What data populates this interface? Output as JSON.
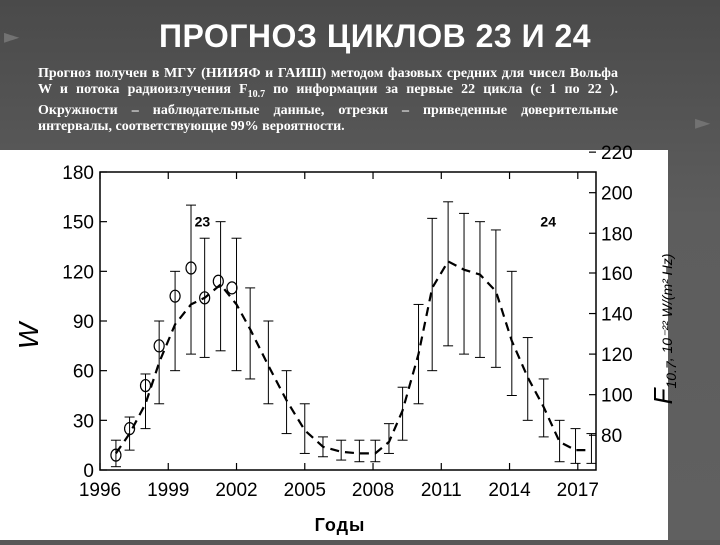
{
  "slide": {
    "title": "ПРОГНОЗ ЦИКЛОВ 23 И 24",
    "note_part1": "Прогноз получен в МГУ (НИИЯФ и ГАИШ) методом фазовых средних для чисел Вольфа W и потока радиоизлучения F",
    "note_sub": "10.7",
    "note_part2": " по информации за первые 22 цикла (с 1 по 22 ). Окружности – наблюдательные данные, отрезки – приведенные доверительные интервалы, соответствующие 99% вероятности.",
    "colors": {
      "background": "#585858",
      "text": "#ffffff",
      "panel": "#ffffff",
      "ink": "#000000"
    },
    "decoration": [
      "chevron-right-icon",
      "chevron-right-icon"
    ]
  },
  "chart_data": {
    "type": "line",
    "title": "",
    "xlabel": "Годы",
    "ylabel": "W",
    "y2label_main": "F",
    "y2label_sub": "10.7",
    "y2label_unit": ", 10⁻²² W/(m² Hz)",
    "xlim": [
      1996,
      2017.8
    ],
    "ylim": [
      0,
      180
    ],
    "x_ticks": [
      1996,
      1999,
      2002,
      2005,
      2008,
      2011,
      2014,
      2017
    ],
    "y_ticks": [
      0,
      30,
      60,
      90,
      120,
      150,
      180
    ],
    "y2_ticks": [
      {
        "label": "80",
        "y": 21
      },
      {
        "label": "100",
        "y": 45.5
      },
      {
        "label": "120",
        "y": 70
      },
      {
        "label": "140",
        "y": 94.5
      },
      {
        "label": "160",
        "y": 119
      },
      {
        "label": "180",
        "y": 143
      },
      {
        "label": "200",
        "y": 167.5
      },
      {
        "label": "220",
        "y": 192
      }
    ],
    "cycle_labels": [
      {
        "text": "23",
        "x": 2000.5,
        "y": 147
      },
      {
        "text": "24",
        "x": 2015.7,
        "y": 147
      }
    ],
    "grid": false,
    "series": [
      {
        "style": "dashed",
        "x": [
          1996.7,
          1997.3,
          1998.0,
          1998.6,
          1999.3,
          2000.0,
          2000.6,
          2001.3,
          2002.0,
          2002.6,
          2003.4,
          2004.2,
          2005.0,
          2005.8,
          2006.6,
          2007.4,
          2008.1,
          2008.7,
          2009.3,
          2010.0,
          2010.6,
          2011.3,
          2012.0,
          2012.7,
          2013.4,
          2014.1,
          2014.8,
          2015.5,
          2016.2,
          2016.9,
          2017.6
        ],
        "y": [
          10,
          22,
          40,
          65,
          88,
          100,
          104,
          112,
          100,
          85,
          63,
          42,
          24,
          14,
          11,
          10,
          10,
          17,
          36,
          70,
          110,
          126,
          121,
          118,
          108,
          78,
          56,
          38,
          17,
          12,
          12
        ]
      }
    ],
    "observations": [
      {
        "x": 1996.7,
        "y": 9
      },
      {
        "x": 1997.3,
        "y": 25
      },
      {
        "x": 1998.0,
        "y": 51
      },
      {
        "x": 1998.6,
        "y": 75
      },
      {
        "x": 1999.3,
        "y": 105
      },
      {
        "x": 2000.0,
        "y": 122
      },
      {
        "x": 2000.6,
        "y": 104
      },
      {
        "x": 2001.2,
        "y": 114
      },
      {
        "x": 2001.8,
        "y": 110
      }
    ],
    "error_bars": [
      {
        "x": 1996.7,
        "low": 2,
        "high": 18
      },
      {
        "x": 1997.3,
        "low": 12,
        "high": 32
      },
      {
        "x": 1998.0,
        "low": 25,
        "high": 58
      },
      {
        "x": 1998.6,
        "low": 40,
        "high": 90
      },
      {
        "x": 1999.3,
        "low": 60,
        "high": 120
      },
      {
        "x": 2000.0,
        "low": 70,
        "high": 160
      },
      {
        "x": 2000.6,
        "low": 68,
        "high": 140
      },
      {
        "x": 2001.3,
        "low": 72,
        "high": 150
      },
      {
        "x": 2002.0,
        "low": 60,
        "high": 140
      },
      {
        "x": 2002.6,
        "low": 55,
        "high": 110
      },
      {
        "x": 2003.4,
        "low": 40,
        "high": 90
      },
      {
        "x": 2004.2,
        "low": 22,
        "high": 60
      },
      {
        "x": 2005.0,
        "low": 10,
        "high": 40
      },
      {
        "x": 2005.8,
        "low": 8,
        "high": 20
      },
      {
        "x": 2006.6,
        "low": 6,
        "high": 18
      },
      {
        "x": 2007.4,
        "low": 5,
        "high": 18
      },
      {
        "x": 2008.1,
        "low": 5,
        "high": 18
      },
      {
        "x": 2008.7,
        "low": 10,
        "high": 28
      },
      {
        "x": 2009.3,
        "low": 18,
        "high": 50
      },
      {
        "x": 2010.0,
        "low": 40,
        "high": 100
      },
      {
        "x": 2010.6,
        "low": 60,
        "high": 152
      },
      {
        "x": 2011.3,
        "low": 75,
        "high": 162
      },
      {
        "x": 2012.0,
        "low": 70,
        "high": 155
      },
      {
        "x": 2012.7,
        "low": 68,
        "high": 150
      },
      {
        "x": 2013.4,
        "low": 62,
        "high": 145
      },
      {
        "x": 2014.1,
        "low": 45,
        "high": 120
      },
      {
        "x": 2014.8,
        "low": 30,
        "high": 80
      },
      {
        "x": 2015.5,
        "low": 20,
        "high": 55
      },
      {
        "x": 2016.2,
        "low": 5,
        "high": 30
      },
      {
        "x": 2016.9,
        "low": 4,
        "high": 25
      },
      {
        "x": 2017.6,
        "low": 4,
        "high": 22
      }
    ]
  }
}
